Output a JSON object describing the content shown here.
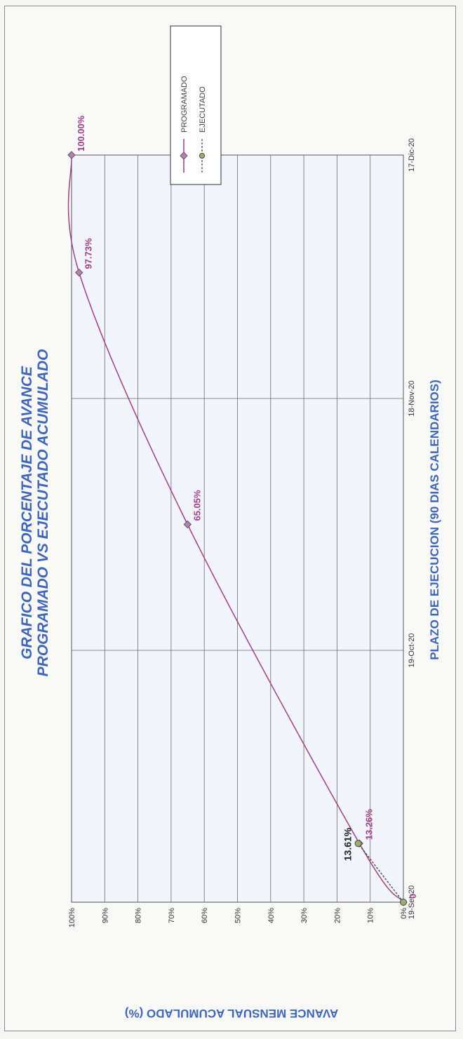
{
  "chart_data": {
    "type": "line",
    "title_line1": "GRAFICO DEL PORCENTAJE DE AVANCE",
    "title_line2": "PROGRAMADO VS EJECUTADO ACUMULADO",
    "xlabel": "PLAZO DE EJECUCION (90 DIAS CALENDARIOS)",
    "ylabel": "AVANCE MENSUAL ACUMULADO (%)",
    "x_ticks": [
      "19-Set-20",
      "19-Oct-20",
      "18-Nov-20",
      "17-Dic-20"
    ],
    "y_ticks": [
      "0%",
      "10%",
      "20%",
      "30%",
      "40%",
      "50%",
      "60%",
      "70%",
      "80%",
      "90%",
      "100%"
    ],
    "ylim": [
      0,
      100
    ],
    "grid": true,
    "legend_position": "right",
    "series": [
      {
        "name": "PROGRAMADO",
        "color": "#a0408a",
        "marker": "diamond",
        "points": [
          {
            "x": "19-Set-20",
            "y": 0,
            "label": "0"
          },
          {
            "x": "26-Set-20",
            "y": 13.26,
            "label": "13.26%"
          },
          {
            "x": "3-Nov-20",
            "y": 65.05,
            "label": "65.05%"
          },
          {
            "x": "3-Dic-20",
            "y": 97.73,
            "label": "97.73%"
          },
          {
            "x": "17-Dic-20",
            "y": 100,
            "label": "100.00%"
          }
        ]
      },
      {
        "name": "EJECUTADO",
        "color": "#6e8f4e",
        "marker": "circle",
        "points": [
          {
            "x": "19-Set-20",
            "y": 0,
            "label": ""
          },
          {
            "x": "26-Set-20",
            "y": 13.61,
            "label": "13.61%"
          }
        ]
      }
    ]
  }
}
